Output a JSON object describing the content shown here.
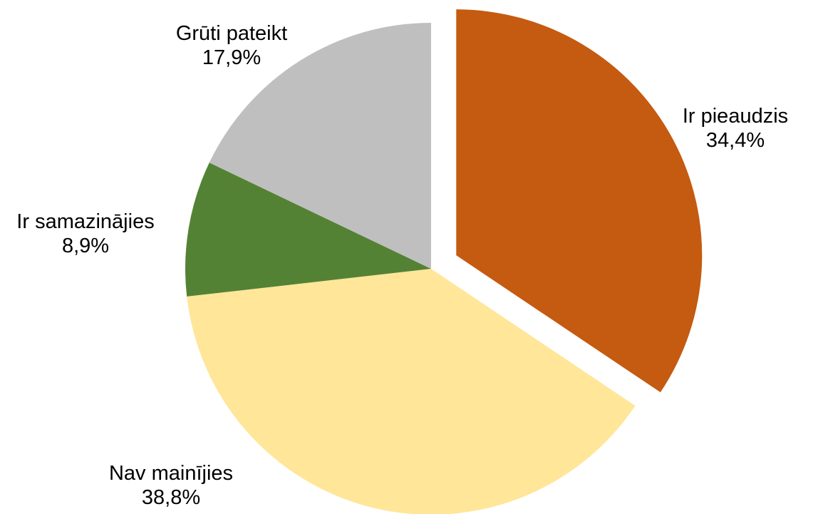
{
  "chart_data": {
    "type": "pie",
    "slices": [
      {
        "label": "Ir pieaudzis",
        "value": 34.4,
        "display": "34,4%",
        "color": "#c55a11",
        "exploded": true
      },
      {
        "label": "Nav mainījies",
        "value": 38.8,
        "display": "38,8%",
        "color": "#ffe699",
        "exploded": false
      },
      {
        "label": "Ir samazinājies",
        "value": 8.9,
        "display": "8,9%",
        "color": "#548235",
        "exploded": false
      },
      {
        "label": "Grūti pateikt",
        "value": 17.9,
        "display": "17,9%",
        "color": "#bfbfbf",
        "exploded": false
      }
    ],
    "start": "12 o'clock",
    "direction": "clockwise"
  }
}
